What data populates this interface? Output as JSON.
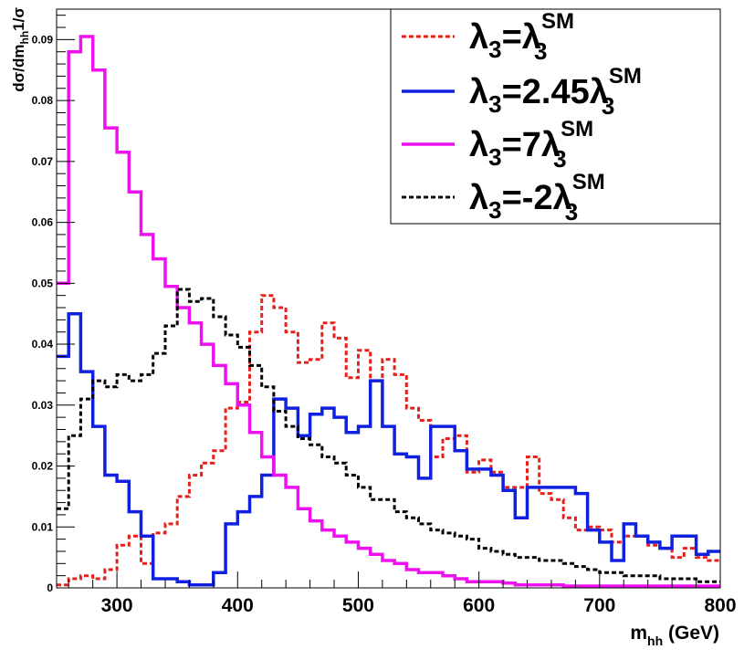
{
  "chart_data": {
    "type": "line",
    "style": "step-histogram",
    "xlabel": {
      "main": "m",
      "sub": "hh",
      "suffix": " (GeV)"
    },
    "ylabel": {
      "prefix": "dσ/dm",
      "sub": "hh",
      "suffix": "1/σ"
    },
    "xlim": [
      250,
      800
    ],
    "ylim": [
      0,
      0.095
    ],
    "x_ticks": [
      300,
      400,
      500,
      600,
      700,
      800
    ],
    "y_ticks": [
      0,
      0.01,
      0.02,
      0.03,
      0.04,
      0.05,
      0.06,
      0.07,
      0.08,
      0.09
    ],
    "y_tick_labels": [
      "0",
      "0.01",
      "0.02",
      "0.03",
      "0.04",
      "0.05",
      "0.06",
      "0.07",
      "0.08",
      "0.09"
    ],
    "bin_edges_start": 250,
    "bin_width": 10,
    "legend": {
      "placement": "top-right",
      "entries": [
        {
          "pre": "λ",
          "sub": "3",
          "mid": "=",
          "coef": "",
          "lam": "λ",
          "lamsub": "3",
          "sup": "SM",
          "color": "#e8201c",
          "dash": "dotted"
        },
        {
          "pre": "λ",
          "sub": "3",
          "mid": "=",
          "coef": "2.45",
          "lam": "λ",
          "lamsub": "3",
          "sup": "SM",
          "color": "#1020e0",
          "dash": "solid"
        },
        {
          "pre": "λ",
          "sub": "3",
          "mid": "=",
          "coef": "7",
          "lam": "λ",
          "lamsub": "3",
          "sup": "SM",
          "color": "#ee10ee",
          "dash": "solid"
        },
        {
          "pre": "λ",
          "sub": "3",
          "mid": "=",
          "coef": "-2",
          "lam": "λ",
          "lamsub": "3",
          "sup": "SM",
          "color": "#000000",
          "dash": "dotted"
        }
      ]
    },
    "series": [
      {
        "color": "#e8201c",
        "dash": "dotted",
        "values": [
          0.0005,
          0.0015,
          0.002,
          0.0015,
          0.003,
          0.007,
          0.0085,
          0.004,
          0.009,
          0.0105,
          0.015,
          0.0185,
          0.0205,
          0.0225,
          0.0295,
          0.0305,
          0.042,
          0.048,
          0.046,
          0.042,
          0.037,
          0.0375,
          0.0435,
          0.041,
          0.0345,
          0.039,
          0.034,
          0.0375,
          0.035,
          0.0295,
          0.0275,
          0.0215,
          0.0245,
          0.025,
          0.019,
          0.021,
          0.019,
          0.0165,
          0.0165,
          0.0215,
          0.0155,
          0.0145,
          0.0115,
          0.0095,
          0.01,
          0.0095,
          0.0075,
          0.0085,
          0.0085,
          0.007,
          0.0065,
          0.005,
          0.0065,
          0.005,
          0.0045
        ]
      },
      {
        "color": "#1020e0",
        "dash": "solid",
        "values": [
          0.038,
          0.045,
          0.0355,
          0.0265,
          0.0185,
          0.0175,
          0.0125,
          0.0085,
          0.0015,
          0.0015,
          0.001,
          0.0005,
          0.0005,
          0.0025,
          0.0105,
          0.0125,
          0.015,
          0.0185,
          0.031,
          0.0295,
          0.025,
          0.0285,
          0.0295,
          0.028,
          0.0255,
          0.0265,
          0.034,
          0.0265,
          0.022,
          0.0215,
          0.018,
          0.0265,
          0.0265,
          0.0225,
          0.0195,
          0.0195,
          0.0185,
          0.016,
          0.0115,
          0.0165,
          0.0165,
          0.0165,
          0.0165,
          0.0155,
          0.0095,
          0.0075,
          0.0045,
          0.0105,
          0.0085,
          0.0075,
          0.0065,
          0.0085,
          0.0085,
          0.0055,
          0.006
        ]
      },
      {
        "color": "#ee10ee",
        "dash": "solid",
        "values": [
          0.05,
          0.088,
          0.0905,
          0.085,
          0.0755,
          0.0715,
          0.065,
          0.058,
          0.054,
          0.0495,
          0.046,
          0.0435,
          0.04,
          0.0365,
          0.0335,
          0.03,
          0.0255,
          0.0215,
          0.0185,
          0.0165,
          0.013,
          0.011,
          0.0095,
          0.0085,
          0.0075,
          0.0065,
          0.0055,
          0.0045,
          0.004,
          0.003,
          0.0025,
          0.0025,
          0.002,
          0.0015,
          0.001,
          0.001,
          0.001,
          0.0008,
          0.0005,
          0.0005,
          0.0005,
          0.0005,
          0.0003,
          0.0003,
          0.0003,
          0.0003,
          0.0003,
          0.0003,
          0.0003,
          0.0003,
          0.0003,
          0.0003,
          0.0003,
          0.0003,
          0.0003
        ]
      },
      {
        "color": "#000000",
        "dash": "dotted",
        "values": [
          0.013,
          0.025,
          0.031,
          0.034,
          0.033,
          0.035,
          0.034,
          0.035,
          0.0385,
          0.043,
          0.049,
          0.047,
          0.0475,
          0.0445,
          0.0415,
          0.0395,
          0.0365,
          0.033,
          0.029,
          0.0265,
          0.0245,
          0.0235,
          0.0215,
          0.0205,
          0.0185,
          0.0165,
          0.0145,
          0.0145,
          0.0125,
          0.0115,
          0.0105,
          0.0095,
          0.009,
          0.0085,
          0.008,
          0.0065,
          0.006,
          0.0055,
          0.005,
          0.005,
          0.0045,
          0.0045,
          0.004,
          0.0035,
          0.003,
          0.0025,
          0.0025,
          0.002,
          0.002,
          0.002,
          0.0015,
          0.0015,
          0.0015,
          0.001,
          0.001
        ]
      }
    ]
  }
}
